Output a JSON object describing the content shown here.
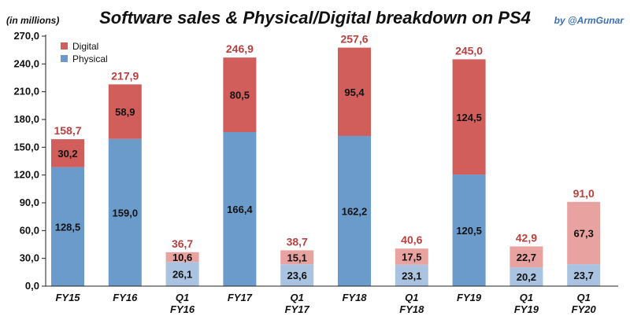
{
  "chart_data": {
    "type": "bar",
    "stacked": true,
    "title": "Software sales & Physical/Digital breakdown on PS4",
    "units_label": "(in millions)",
    "credit": "by @ArmGunar",
    "ylim": [
      0,
      270
    ],
    "yticks": [
      "0,0",
      "30,0",
      "60,0",
      "90,0",
      "120,0",
      "150,0",
      "180,0",
      "210,0",
      "240,0",
      "270,0"
    ],
    "ytick_values": [
      0,
      30,
      60,
      90,
      120,
      150,
      180,
      210,
      240,
      270
    ],
    "legend": {
      "position": "top-left",
      "digital": "Digital",
      "physical": "Physical"
    },
    "colors": {
      "physical": "#6a9bcb",
      "digital": "#d25e5b",
      "physical_quarter": "#a9c3e0",
      "digital_quarter": "#e8a3a1",
      "total": "#b9403f"
    },
    "categories": [
      {
        "label_line1": "FY15",
        "label_line2": "",
        "kind": "fy",
        "physical": 128.5,
        "digital": 30.2,
        "physical_text": "128,5",
        "digital_text": "30,2",
        "total_text": "158,7"
      },
      {
        "label_line1": "FY16",
        "label_line2": "",
        "kind": "fy",
        "physical": 159.0,
        "digital": 58.9,
        "physical_text": "159,0",
        "digital_text": "58,9",
        "total_text": "217,9"
      },
      {
        "label_line1": "Q1",
        "label_line2": "FY16",
        "kind": "q",
        "physical": 26.1,
        "digital": 10.6,
        "physical_text": "26,1",
        "digital_text": "10,6",
        "total_text": "36,7"
      },
      {
        "label_line1": "FY17",
        "label_line2": "",
        "kind": "fy",
        "physical": 166.4,
        "digital": 80.5,
        "physical_text": "166,4",
        "digital_text": "80,5",
        "total_text": "246,9"
      },
      {
        "label_line1": "Q1",
        "label_line2": "FY17",
        "kind": "q",
        "physical": 23.6,
        "digital": 15.1,
        "physical_text": "23,6",
        "digital_text": "15,1",
        "total_text": "38,7"
      },
      {
        "label_line1": "FY18",
        "label_line2": "",
        "kind": "fy",
        "physical": 162.2,
        "digital": 95.4,
        "physical_text": "162,2",
        "digital_text": "95,4",
        "total_text": "257,6"
      },
      {
        "label_line1": "Q1",
        "label_line2": "FY18",
        "kind": "q",
        "physical": 23.1,
        "digital": 17.5,
        "physical_text": "23,1",
        "digital_text": "17,5",
        "total_text": "40,6"
      },
      {
        "label_line1": "FY19",
        "label_line2": "",
        "kind": "fy",
        "physical": 120.5,
        "digital": 124.5,
        "physical_text": "120,5",
        "digital_text": "124,5",
        "total_text": "245,0"
      },
      {
        "label_line1": "Q1",
        "label_line2": "FY19",
        "kind": "q",
        "physical": 20.2,
        "digital": 22.7,
        "physical_text": "20,2",
        "digital_text": "22,7",
        "total_text": "42,9"
      },
      {
        "label_line1": "Q1",
        "label_line2": "FY20",
        "kind": "q",
        "physical": 23.7,
        "digital": 67.3,
        "physical_text": "23,7",
        "digital_text": "67,3",
        "total_text": "91,0"
      }
    ]
  }
}
